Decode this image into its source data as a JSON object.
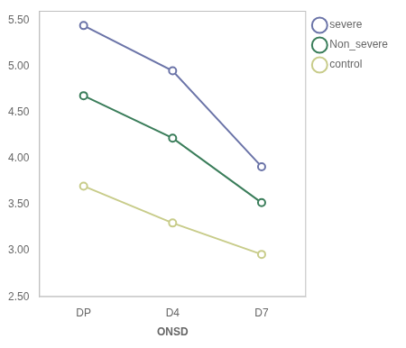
{
  "chart_data": {
    "type": "line",
    "xlabel": "ONSD",
    "categories": [
      "DP",
      "D4",
      "D7"
    ],
    "series": [
      {
        "name": "severe",
        "color": "#6b74a8",
        "marker": "circle",
        "values": [
          5.44,
          4.95,
          3.91
        ]
      },
      {
        "name": "Non_severe",
        "color": "#3a7d5a",
        "marker": "circle",
        "values": [
          4.68,
          4.22,
          3.52
        ]
      },
      {
        "name": "control",
        "color": "#c8cc8a",
        "marker": "circle",
        "values": [
          3.7,
          3.3,
          2.96
        ]
      }
    ],
    "ylim": [
      2.5,
      5.6
    ],
    "yticks": [
      {
        "value": 2.5,
        "label": "2.50"
      },
      {
        "value": 3.0,
        "label": "3.00"
      },
      {
        "value": 3.5,
        "label": "3.50"
      },
      {
        "value": 4.0,
        "label": "4.00"
      },
      {
        "value": 4.5,
        "label": "4.50"
      },
      {
        "value": 5.0,
        "label": "5.00"
      },
      {
        "value": 5.5,
        "label": "5.50"
      }
    ],
    "grid": false,
    "legend": "right"
  }
}
